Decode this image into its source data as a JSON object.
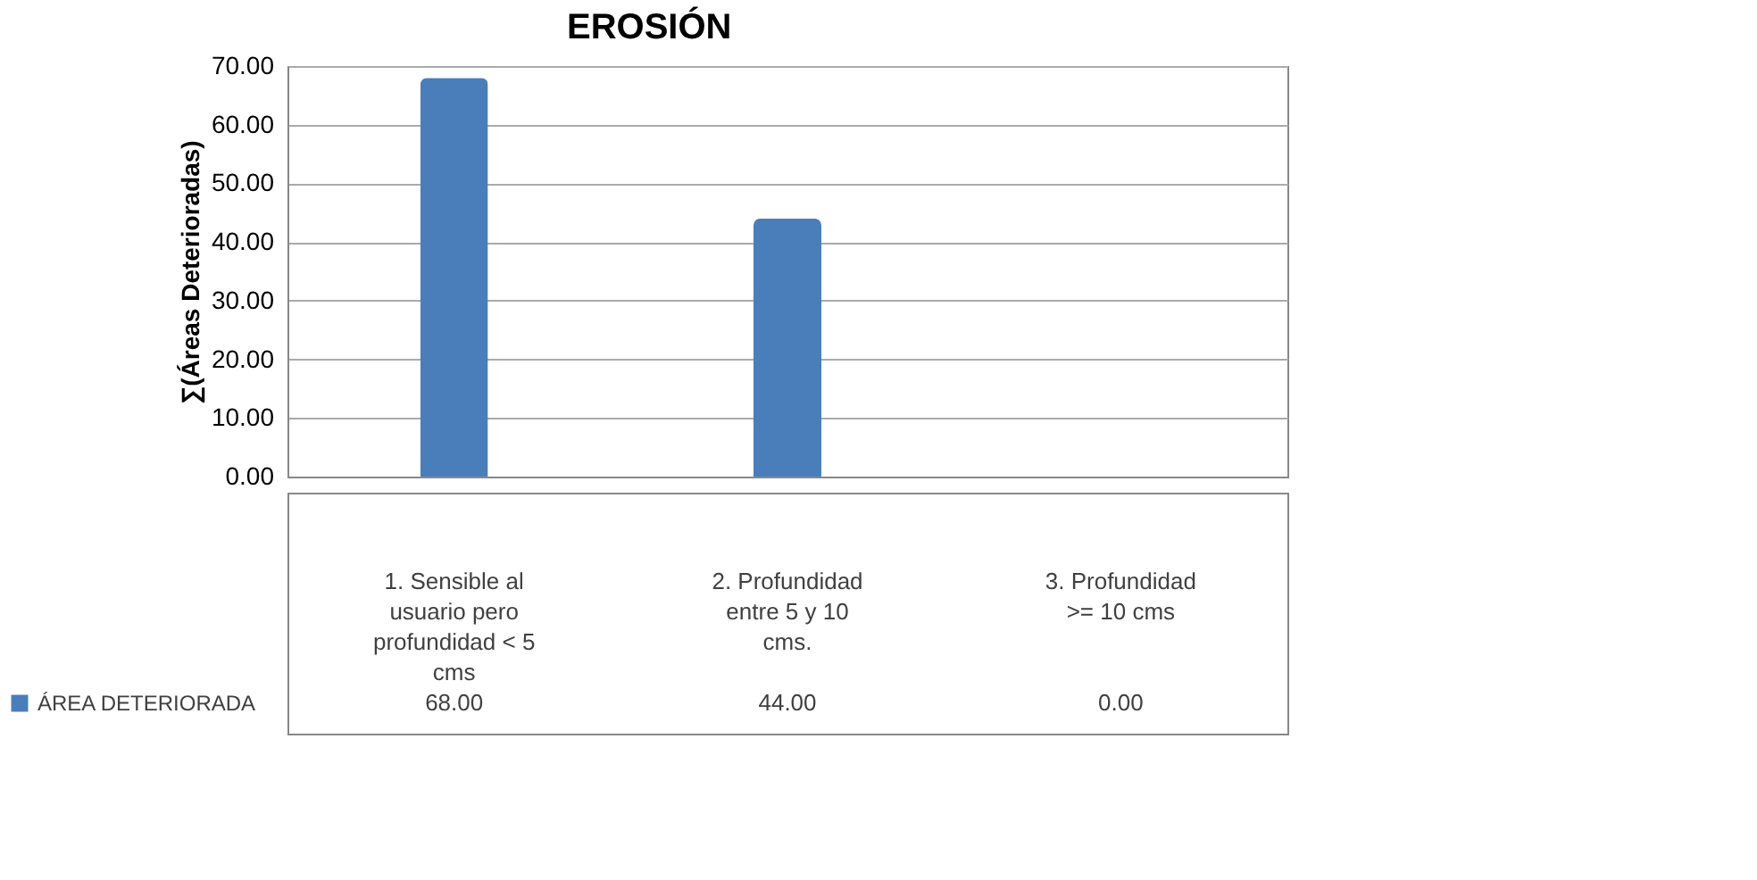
{
  "chart_data": {
    "type": "bar",
    "title": "EROSIÓN",
    "ylabel": "∑(Áreas Deterioradas)",
    "categories": [
      "1. Sensible al usuario pero profundidad < 5 cms",
      "2. Profundidad entre 5 y 10 cms.",
      "3. Profundidad >= 10 cms"
    ],
    "series": [
      {
        "name": "ÁREA DETERIORADA",
        "color": "#4a7ebb",
        "values": [
          68,
          44,
          0
        ],
        "value_labels": [
          "68.00",
          "44.00",
          "0.00"
        ]
      }
    ],
    "ylim": [
      0,
      70
    ],
    "yticks": [
      {
        "value": 0,
        "label": "0.00"
      },
      {
        "value": 10,
        "label": "10.00"
      },
      {
        "value": 20,
        "label": "20.00"
      },
      {
        "value": 30,
        "label": "30.00"
      },
      {
        "value": 40,
        "label": "40.00"
      },
      {
        "value": 50,
        "label": "50.00"
      },
      {
        "value": 60,
        "label": "60.00"
      },
      {
        "value": 70,
        "label": "70.00"
      }
    ],
    "grid": "y",
    "legend": "bottom left"
  }
}
